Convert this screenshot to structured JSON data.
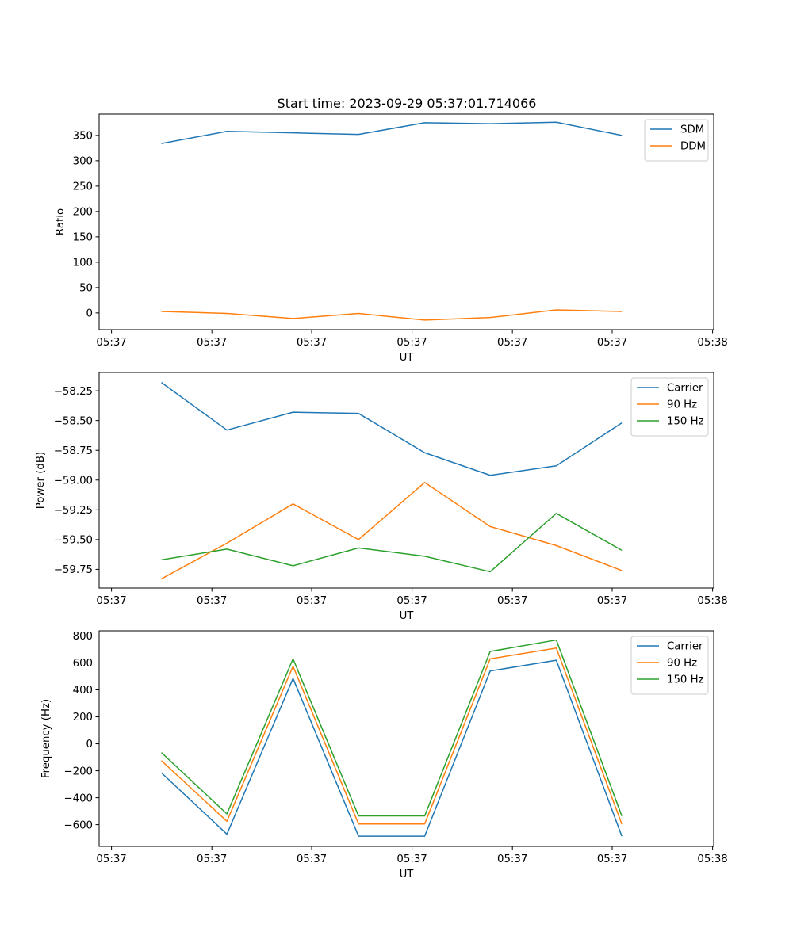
{
  "figure_title": "Start time: 2023-09-29 05:37:01.714066",
  "colors": {
    "blue": "#1f77b4",
    "orange": "#ff7f0e",
    "green": "#2ca02c"
  },
  "chart_data": [
    {
      "type": "line",
      "title": "Start time: 2023-09-29 05:37:01.714066",
      "xlabel": "UT",
      "ylabel": "Ratio",
      "xlim": [
        0,
        1
      ],
      "ylim": [
        -33,
        392
      ],
      "x": [
        0.083,
        0.192,
        0.302,
        0.411,
        0.521,
        0.63,
        0.74,
        0.849
      ],
      "xticks": [
        0.0,
        0.167,
        0.333,
        0.5,
        0.667,
        0.833,
        1.0
      ],
      "xtick_labels": [
        "05:37",
        "05:37",
        "05:37",
        "05:37",
        "05:37",
        "05:37",
        "05:38"
      ],
      "yticks": [
        0,
        50,
        100,
        150,
        200,
        250,
        300,
        350
      ],
      "ytick_labels": [
        "0",
        "50",
        "100",
        "150",
        "200",
        "250",
        "300",
        "350"
      ],
      "legend": "top-right",
      "series": [
        {
          "name": "SDM",
          "color": "#1f77b4",
          "values": [
            334,
            358,
            355,
            352,
            375,
            373,
            376,
            350
          ]
        },
        {
          "name": "DDM",
          "color": "#ff7f0e",
          "values": [
            3,
            -1,
            -11,
            -1,
            -14,
            -9,
            6,
            3
          ]
        }
      ]
    },
    {
      "type": "line",
      "title": "",
      "xlabel": "UT",
      "ylabel": "Power (dB)",
      "xlim": [
        0,
        1
      ],
      "ylim": [
        -59.907,
        -58.096
      ],
      "x": [
        0.083,
        0.192,
        0.302,
        0.411,
        0.521,
        0.63,
        0.74,
        0.849
      ],
      "xticks": [
        0.0,
        0.167,
        0.333,
        0.5,
        0.667,
        0.833,
        1.0
      ],
      "xtick_labels": [
        "05:37",
        "05:37",
        "05:37",
        "05:37",
        "05:37",
        "05:37",
        "05:38"
      ],
      "yticks": [
        -59.75,
        -59.5,
        -59.25,
        -59.0,
        -58.75,
        -58.5,
        -58.25
      ],
      "ytick_labels": [
        "−59.75",
        "−59.50",
        "−59.25",
        "−59.00",
        "−58.75",
        "−58.50",
        "−58.25"
      ],
      "legend": "top-right",
      "series": [
        {
          "name": "Carrier",
          "color": "#1f77b4",
          "values": [
            -58.18,
            -58.58,
            -58.43,
            -58.44,
            -58.77,
            -58.96,
            -58.88,
            -58.52
          ]
        },
        {
          "name": "90 Hz",
          "color": "#ff7f0e",
          "values": [
            -59.83,
            -59.53,
            -59.2,
            -59.5,
            -59.02,
            -59.39,
            -59.55,
            -59.76
          ]
        },
        {
          "name": "150 Hz",
          "color": "#2ca02c",
          "values": [
            -59.67,
            -59.58,
            -59.72,
            -59.57,
            -59.64,
            -59.77,
            -59.28,
            -59.59
          ]
        }
      ]
    },
    {
      "type": "line",
      "title": "",
      "xlabel": "UT",
      "ylabel": "Frequency (Hz)",
      "xlim": [
        0,
        1
      ],
      "ylim": [
        -761,
        838
      ],
      "x": [
        0.083,
        0.192,
        0.302,
        0.411,
        0.521,
        0.63,
        0.74,
        0.849
      ],
      "xticks": [
        0.0,
        0.167,
        0.333,
        0.5,
        0.667,
        0.833,
        1.0
      ],
      "xtick_labels": [
        "05:37",
        "05:37",
        "05:37",
        "05:37",
        "05:37",
        "05:37",
        "05:38"
      ],
      "yticks": [
        -600,
        -400,
        -200,
        0,
        200,
        400,
        600,
        800
      ],
      "ytick_labels": [
        "−600",
        "−400",
        "−200",
        "0",
        "200",
        "400",
        "600",
        "800"
      ],
      "legend": "top-right",
      "series": [
        {
          "name": "Carrier",
          "color": "#1f77b4",
          "values": [
            -215,
            -670,
            485,
            -685,
            -685,
            540,
            620,
            -685
          ]
        },
        {
          "name": "90 Hz",
          "color": "#ff7f0e",
          "values": [
            -125,
            -575,
            575,
            -595,
            -595,
            630,
            710,
            -595
          ]
        },
        {
          "name": "150 Hz",
          "color": "#2ca02c",
          "values": [
            -65,
            -520,
            630,
            -535,
            -535,
            685,
            770,
            -535
          ]
        }
      ]
    }
  ]
}
